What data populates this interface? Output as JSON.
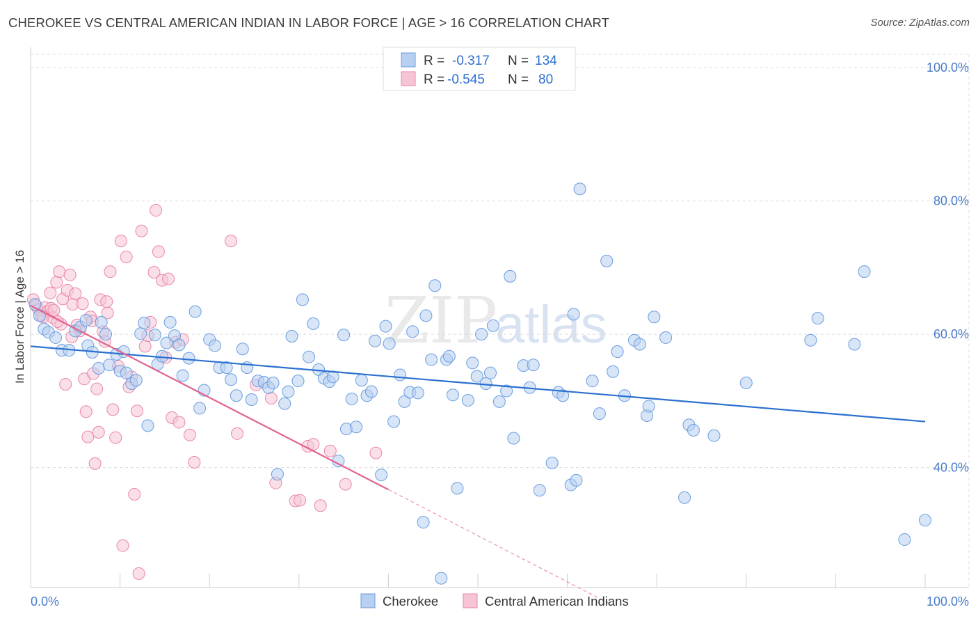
{
  "title": "CHEROKEE VS CENTRAL AMERICAN INDIAN IN LABOR FORCE | AGE > 16 CORRELATION CHART",
  "source": "Source: ZipAtlas.com",
  "watermark": {
    "zip": "ZIP",
    "atlas": "atlas"
  },
  "colors": {
    "blue": "#6a9de0",
    "blue_fill": "#b7cff0",
    "blue_line": "#2b6fd0",
    "pink": "#e986a8",
    "pink_fill": "#f6c4d5",
    "pink_line": "#e2638f",
    "tick_text": "#4a7cc9"
  },
  "legend": {
    "rows": [
      {
        "r_label": "R =",
        "r_value": "-0.317",
        "n_label": "N =",
        "n_value": "134"
      },
      {
        "r_label": "R =",
        "r_value": "-0.545",
        "n_label": "N =",
        "n_value": "80"
      }
    ]
  },
  "bottom_legend": [
    "Cherokee",
    "Central American Indians"
  ],
  "chart_data": {
    "type": "scatter",
    "ylabel": "In Labor Force | Age > 16",
    "xlim": [
      0,
      100
    ],
    "ylim": [
      22,
      102
    ],
    "x_tick_labels": [
      "0.0%",
      "100.0%"
    ],
    "y_ticks": [
      40,
      60,
      80,
      100
    ],
    "y_tick_labels": [
      "40.0%",
      "60.0%",
      "80.0%",
      "100.0%"
    ],
    "grid": true,
    "series": [
      {
        "name": "Cherokee",
        "trend": {
          "x": [
            0,
            100
          ],
          "y": [
            58.2,
            46.9
          ],
          "extrapolated": false
        },
        "points": [
          [
            0.5,
            64.5
          ],
          [
            1.0,
            62.8
          ],
          [
            1.5,
            60.8
          ],
          [
            2.0,
            60.3
          ],
          [
            2.8,
            59.5
          ],
          [
            3.5,
            57.6
          ],
          [
            4.3,
            57.6
          ],
          [
            5.0,
            60.5
          ],
          [
            5.6,
            61.1
          ],
          [
            6.2,
            62.1
          ],
          [
            6.4,
            58.3
          ],
          [
            6.9,
            57.3
          ],
          [
            7.6,
            54.9
          ],
          [
            7.9,
            61.8
          ],
          [
            8.4,
            60.0
          ],
          [
            8.8,
            55.4
          ],
          [
            9.6,
            57.0
          ],
          [
            10.0,
            54.5
          ],
          [
            10.4,
            57.4
          ],
          [
            10.7,
            54.2
          ],
          [
            11.3,
            52.6
          ],
          [
            11.8,
            53.1
          ],
          [
            12.3,
            60.1
          ],
          [
            12.7,
            61.7
          ],
          [
            13.1,
            46.3
          ],
          [
            13.9,
            59.9
          ],
          [
            14.2,
            55.5
          ],
          [
            14.7,
            56.7
          ],
          [
            15.2,
            58.7
          ],
          [
            15.6,
            61.8
          ],
          [
            16.1,
            59.8
          ],
          [
            16.6,
            58.4
          ],
          [
            17.0,
            53.8
          ],
          [
            17.7,
            56.4
          ],
          [
            18.4,
            63.4
          ],
          [
            18.9,
            48.9
          ],
          [
            19.4,
            51.6
          ],
          [
            20.0,
            59.2
          ],
          [
            20.6,
            58.3
          ],
          [
            21.1,
            55.0
          ],
          [
            21.9,
            55.0
          ],
          [
            22.4,
            53.2
          ],
          [
            23.0,
            50.8
          ],
          [
            23.7,
            57.8
          ],
          [
            24.2,
            55.0
          ],
          [
            24.7,
            50.2
          ],
          [
            25.4,
            53.0
          ],
          [
            26.1,
            52.8
          ],
          [
            26.6,
            52.0
          ],
          [
            27.1,
            52.7
          ],
          [
            27.6,
            39.0
          ],
          [
            28.4,
            49.6
          ],
          [
            28.8,
            51.4
          ],
          [
            29.2,
            59.7
          ],
          [
            29.9,
            53.0
          ],
          [
            30.4,
            65.2
          ],
          [
            31.1,
            56.6
          ],
          [
            31.6,
            61.6
          ],
          [
            32.2,
            54.7
          ],
          [
            32.8,
            53.4
          ],
          [
            33.4,
            52.9
          ],
          [
            33.8,
            53.6
          ],
          [
            34.4,
            41.0
          ],
          [
            35.0,
            59.9
          ],
          [
            35.3,
            45.8
          ],
          [
            35.9,
            50.3
          ],
          [
            36.4,
            46.1
          ],
          [
            37.0,
            53.1
          ],
          [
            37.6,
            50.8
          ],
          [
            38.1,
            51.4
          ],
          [
            38.5,
            59.0
          ],
          [
            39.2,
            38.9
          ],
          [
            39.7,
            61.2
          ],
          [
            40.1,
            58.6
          ],
          [
            40.6,
            46.9
          ],
          [
            41.3,
            53.9
          ],
          [
            41.8,
            49.9
          ],
          [
            42.4,
            51.3
          ],
          [
            42.7,
            60.4
          ],
          [
            43.3,
            51.2
          ],
          [
            43.9,
            31.8
          ],
          [
            44.2,
            62.8
          ],
          [
            44.8,
            56.2
          ],
          [
            45.2,
            67.3
          ],
          [
            45.9,
            23.4
          ],
          [
            46.5,
            56.2
          ],
          [
            46.8,
            56.7
          ],
          [
            47.2,
            50.9
          ],
          [
            47.7,
            36.9
          ],
          [
            48.9,
            50.1
          ],
          [
            49.4,
            55.7
          ],
          [
            49.9,
            53.7
          ],
          [
            50.4,
            60.0
          ],
          [
            50.9,
            52.6
          ],
          [
            51.4,
            54.2
          ],
          [
            51.7,
            61.3
          ],
          [
            52.4,
            49.9
          ],
          [
            53.2,
            51.5
          ],
          [
            53.6,
            68.7
          ],
          [
            54.0,
            44.4
          ],
          [
            55.1,
            55.3
          ],
          [
            56.2,
            55.4
          ],
          [
            56.9,
            36.6
          ],
          [
            58.3,
            40.7
          ],
          [
            59.0,
            51.3
          ],
          [
            59.5,
            50.8
          ],
          [
            60.4,
            37.4
          ],
          [
            61.0,
            38.1
          ],
          [
            61.4,
            81.8
          ],
          [
            62.8,
            53.0
          ],
          [
            63.6,
            48.1
          ],
          [
            64.4,
            71.0
          ],
          [
            65.1,
            54.4
          ],
          [
            65.6,
            57.4
          ],
          [
            66.4,
            50.8
          ],
          [
            67.5,
            59.1
          ],
          [
            68.1,
            58.5
          ],
          [
            68.9,
            47.8
          ],
          [
            69.1,
            49.2
          ],
          [
            69.7,
            62.6
          ],
          [
            73.1,
            35.5
          ],
          [
            73.6,
            46.4
          ],
          [
            74.1,
            45.6
          ],
          [
            76.4,
            44.8
          ],
          [
            80.0,
            52.7
          ],
          [
            87.2,
            59.1
          ],
          [
            92.1,
            58.5
          ],
          [
            93.2,
            69.4
          ],
          [
            97.7,
            29.2
          ],
          [
            100.0,
            32.1
          ],
          [
            88.0,
            62.4
          ],
          [
            71.0,
            59.5
          ],
          [
            60.7,
            63.0
          ],
          [
            55.8,
            52.0
          ]
        ]
      },
      {
        "name": "Central American Indians",
        "trend": {
          "x": [
            0,
            40
          ],
          "y": [
            64.3,
            36.7
          ],
          "extrapolated_to": [
            65,
            19.4
          ]
        },
        "points": [
          [
            0.3,
            65.2
          ],
          [
            0.6,
            64.3
          ],
          [
            0.9,
            63.7
          ],
          [
            1.2,
            62.8
          ],
          [
            1.6,
            64.0
          ],
          [
            1.9,
            63.4
          ],
          [
            2.2,
            66.2
          ],
          [
            2.3,
            63.9
          ],
          [
            2.5,
            62.5
          ],
          [
            2.9,
            67.8
          ],
          [
            3.2,
            69.4
          ],
          [
            3.4,
            61.5
          ],
          [
            3.6,
            65.3
          ],
          [
            3.9,
            52.5
          ],
          [
            4.1,
            66.6
          ],
          [
            4.4,
            68.9
          ],
          [
            4.7,
            64.5
          ],
          [
            5.0,
            66.1
          ],
          [
            5.2,
            61.4
          ],
          [
            5.5,
            60.5
          ],
          [
            5.8,
            64.6
          ],
          [
            6.0,
            53.3
          ],
          [
            6.2,
            48.4
          ],
          [
            6.4,
            44.6
          ],
          [
            6.7,
            62.6
          ],
          [
            7.0,
            54.1
          ],
          [
            7.2,
            40.6
          ],
          [
            7.4,
            51.8
          ],
          [
            7.6,
            45.3
          ],
          [
            7.8,
            65.2
          ],
          [
            8.1,
            60.4
          ],
          [
            8.3,
            58.9
          ],
          [
            8.6,
            63.2
          ],
          [
            8.9,
            69.4
          ],
          [
            9.2,
            48.7
          ],
          [
            9.5,
            44.5
          ],
          [
            9.8,
            55.2
          ],
          [
            10.1,
            74.0
          ],
          [
            10.3,
            28.3
          ],
          [
            10.7,
            71.6
          ],
          [
            11.0,
            52.1
          ],
          [
            11.3,
            53.6
          ],
          [
            11.6,
            36.0
          ],
          [
            11.9,
            48.5
          ],
          [
            12.1,
            24.1
          ],
          [
            12.4,
            75.5
          ],
          [
            12.8,
            58.2
          ],
          [
            13.1,
            59.8
          ],
          [
            13.4,
            61.8
          ],
          [
            13.8,
            69.3
          ],
          [
            14.0,
            78.6
          ],
          [
            14.3,
            72.4
          ],
          [
            14.7,
            68.1
          ],
          [
            15.1,
            56.5
          ],
          [
            15.4,
            68.3
          ],
          [
            15.8,
            47.5
          ],
          [
            16.2,
            58.8
          ],
          [
            16.6,
            46.8
          ],
          [
            17.0,
            59.2
          ],
          [
            17.8,
            44.9
          ],
          [
            18.3,
            40.8
          ],
          [
            22.4,
            74.0
          ],
          [
            23.1,
            45.1
          ],
          [
            25.2,
            52.4
          ],
          [
            26.9,
            50.4
          ],
          [
            27.4,
            37.7
          ],
          [
            29.6,
            35.0
          ],
          [
            30.1,
            35.1
          ],
          [
            31.0,
            43.2
          ],
          [
            31.6,
            43.5
          ],
          [
            32.4,
            34.3
          ],
          [
            33.5,
            42.5
          ],
          [
            35.2,
            37.5
          ],
          [
            38.6,
            42.2
          ],
          [
            4.6,
            59.6
          ],
          [
            3.0,
            61.9
          ],
          [
            1.4,
            62.6
          ],
          [
            8.5,
            64.9
          ],
          [
            6.9,
            62.0
          ],
          [
            2.6,
            63.6
          ]
        ]
      }
    ]
  }
}
